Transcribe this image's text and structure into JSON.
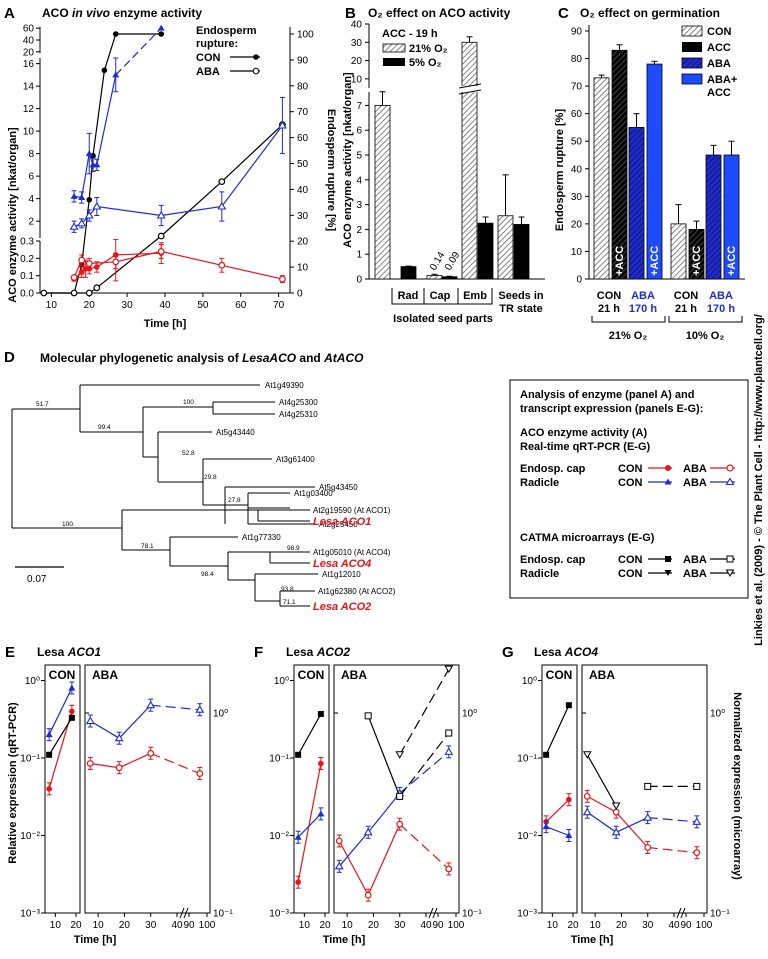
{
  "colors": {
    "con_cap": "#e8151b",
    "radicle": "#1f2bd0",
    "ink": "#000000",
    "aba_bar": "#1f2bd0",
    "aba_acc_bar": "#1f4bff",
    "hatch": "#777777"
  },
  "panel_a": {
    "letter": "A",
    "title_pre": "ACO ",
    "title_em": "in vivo",
    "title_post": " enzyme activity",
    "ylabel": "ACO enzyme activity [nkat/organ]",
    "y2label": "Endosperm rupture [%]",
    "xlabel": "Time [h]",
    "legend": {
      "title1": "Endosperm",
      "title2": "rupture:",
      "con": "CON",
      "aba": "ABA"
    },
    "yticks_low": [
      "0.0",
      "0.1",
      "0.2",
      "0.3"
    ],
    "yticks_mid": [
      "2",
      "4",
      "6",
      "8",
      "10",
      "12",
      "14",
      "16"
    ],
    "yticks_top": [
      "20",
      "40",
      "60"
    ],
    "y2ticks": [
      "0",
      "10",
      "20",
      "30",
      "40",
      "50",
      "60",
      "70",
      "80",
      "90",
      "100"
    ],
    "xticks": [
      "10",
      "20",
      "30",
      "40",
      "50",
      "60",
      "70"
    ]
  },
  "panel_b": {
    "letter": "B",
    "title": "O₂ effect on ACO activity",
    "ylabel": "ACO enzyme activity [nkat/organ]",
    "legend": {
      "head": "ACC - 19 h",
      "s1": "21% O₂",
      "s2": "5% O₂"
    },
    "yticks_low": [
      "0",
      "1",
      "2",
      "3",
      "4",
      "5",
      "6",
      "7"
    ],
    "yticks_top": [
      "10",
      "20",
      "30",
      "40"
    ],
    "labels": {
      "cap_a": "0.14",
      "cap_b": "0.09"
    },
    "groups": [
      "Rad",
      "Cap",
      "Emb"
    ],
    "tr_label1": "Seeds in",
    "tr_label2": "TR state",
    "xgroup": "Isolated seed parts"
  },
  "panel_c": {
    "letter": "C",
    "title": "O₂ effect on germination",
    "ylabel": "Endosperm rupture [%]",
    "legend": [
      "CON",
      "ACC",
      "ABA",
      "ABA+",
      "ACC"
    ],
    "yticks": [
      "0",
      "10",
      "20",
      "30",
      "40",
      "50",
      "60",
      "70",
      "80",
      "90"
    ],
    "bar_text": "+ACC",
    "groups": [
      {
        "a": "CON",
        "b": "21 h",
        "c": "ABA",
        "d": "170 h"
      },
      {
        "a": "CON",
        "b": "21 h",
        "c": "ABA",
        "d": "170 h"
      }
    ],
    "o2_groups": [
      "21% O₂",
      "10% O₂"
    ]
  },
  "side_credit": "Linkies et al. (2009) - © The Plant Cell - http://www.plantcell.org/",
  "panel_d": {
    "letter": "D",
    "title_pre": "Molecular phylogenetic analysis of ",
    "title_em1": "LesaACO",
    "title_mid": " and ",
    "title_em2": "AtACO",
    "leaves": [
      "At1g49390",
      "At4g25300",
      "At4g25310",
      "At5g43440",
      "At3g61400",
      "At5g43450",
      "At1g03400",
      "At2g25450",
      "At2g19590 (At ACO1)",
      "Lesa ACO1",
      "At1g77330",
      "At1g05010 (At ACO4)",
      "Lesa ACO4",
      "At1g12010",
      "At1g62380 (At ACO2)",
      "Lesa ACO2"
    ],
    "bootstrap": [
      "51.7",
      "100",
      "99.4",
      "52.8",
      "29.8",
      "27.8",
      "100.",
      "78.1",
      "98.9",
      "98.4",
      "93.8",
      "71.1"
    ],
    "scale": "0.07",
    "box": {
      "l1": "Analysis of enzyme (panel A) and",
      "l2": "transcript expression (panels E-G):",
      "l3": "ACO enzyme activity (A)",
      "l4": "Real-time qRT-PCR (E-G)",
      "cap": "Endosp. cap",
      "rad": "Radicle",
      "con": "CON",
      "aba": "ABA",
      "l5": "CATMA microarrays (E-G)"
    }
  },
  "panel_efg": {
    "ylabel": "Relative expression (qRT-PCR)",
    "y2label": "Normalized expression (microarray)",
    "xlabel": "Time [h]",
    "con_label": "CON",
    "aba_label": "ABA",
    "yticks": [
      "10⁻³",
      "10⁻²",
      "10⁻¹",
      "10⁰"
    ],
    "y2ticks": [
      "10⁻¹",
      "10⁰"
    ],
    "xticks_con": [
      "10",
      "20"
    ],
    "xticks_aba": [
      "10",
      "20",
      "30",
      "40",
      "90",
      "100"
    ],
    "panels": [
      {
        "letter": "E",
        "gene_pre": "Lesa ",
        "gene": "ACO1"
      },
      {
        "letter": "F",
        "gene_pre": "Lesa ",
        "gene": "ACO2"
      },
      {
        "letter": "G",
        "gene_pre": "Lesa ",
        "gene": "ACO4"
      }
    ]
  },
  "chart_data": [
    {
      "panel": "A",
      "type": "line",
      "title": "ACO in vivo enzyme activity",
      "xlabel": "Time [h]",
      "ylabel": "ACO enzyme activity [nkat/organ]",
      "y2label": "Endosperm rupture [%]",
      "xlim": [
        7,
        73
      ],
      "y_breaks": [
        [
          0,
          0.3
        ],
        [
          0.5,
          16.5
        ],
        [
          18,
          62
        ]
      ],
      "y2lim": [
        0,
        100
      ],
      "series": [
        {
          "name": "CON",
          "axis": "y2",
          "marker": "filled-circle",
          "points": [
            [
              8,
              0
            ],
            [
              16,
              0
            ],
            [
              18,
              11
            ],
            [
              20,
              36
            ],
            [
              21,
              53
            ],
            [
              24,
              86
            ],
            [
              27,
              100
            ],
            [
              39,
              100
            ]
          ]
        },
        {
          "name": "ABA",
          "axis": "y2",
          "marker": "open-circle",
          "points": [
            [
              8,
              0
            ],
            [
              16,
              0
            ],
            [
              20,
              0
            ],
            [
              22,
              2
            ],
            [
              39,
              22
            ],
            [
              55,
              43
            ],
            [
              71,
              65
            ]
          ]
        },
        {
          "points_label": "Endosp. cap CON",
          "axis": "y",
          "points": [
            [
              16,
              0.08
            ],
            [
              18,
              0.12
            ],
            [
              19,
              0.14
            ],
            [
              20,
              0.14
            ],
            [
              22,
              0.15
            ],
            [
              27,
              0.22
            ],
            [
              39,
              0.23
            ]
          ],
          "err": [
            0.01,
            0.03,
            0.05,
            0.03,
            0.03,
            0.15,
            0.06
          ]
        },
        {
          "points_label": "Endosp. cap ABA",
          "axis": "y",
          "points": [
            [
              16,
              0.09
            ],
            [
              18,
              0.19
            ],
            [
              20,
              0.17
            ],
            [
              27,
              0.18
            ],
            [
              39,
              0.24
            ],
            [
              55,
              0.16
            ],
            [
              71,
              0.08
            ]
          ],
          "err": [
            0.01,
            0.03,
            0.03,
            0.04,
            0.04,
            0.04,
            0.02
          ]
        },
        {
          "points_label": "Radicle CON",
          "axis": "y",
          "points": [
            [
              16,
              4.2
            ],
            [
              18,
              4.1
            ],
            [
              20,
              8
            ],
            [
              21,
              7
            ],
            [
              22,
              7
            ],
            [
              27,
              15
            ],
            [
              39,
              60
            ]
          ],
          "err": [
            0.5,
            0.5,
            1.8,
            0.6,
            0.5,
            1.5,
            0
          ]
        },
        {
          "points_label": "Radicle ABA",
          "axis": "y",
          "points": [
            [
              16,
              1.5
            ],
            [
              18,
              1.8
            ],
            [
              20,
              2.5
            ],
            [
              22,
              3.3
            ],
            [
              39,
              2.5
            ],
            [
              55,
              3.3
            ],
            [
              71,
              10.5
            ]
          ],
          "err": [
            0.5,
            0.4,
            0.5,
            0.8,
            0.9,
            1.3,
            2.5
          ]
        }
      ]
    },
    {
      "panel": "B",
      "type": "bar",
      "title": "O₂ effect on ACO activity",
      "ylabel": "ACO enzyme activity [nkat/organ]",
      "categories": [
        "Rad",
        "Cap",
        "Emb",
        "Seeds in TR state"
      ],
      "series": [
        {
          "name": "21% O₂",
          "values": [
            7.0,
            0.14,
            30,
            2.55
          ],
          "err": [
            0.55,
            0.05,
            3,
            1.65
          ]
        },
        {
          "name": "5% O₂",
          "values": [
            0.5,
            0.09,
            2.25,
            2.2
          ],
          "err": [
            0.02,
            0.02,
            0.25,
            0.3
          ]
        }
      ]
    },
    {
      "panel": "C",
      "type": "bar",
      "title": "O₂ effect on germination",
      "ylabel": "Endosperm rupture [%]",
      "ylim": [
        0,
        90
      ],
      "categories": [
        "CON 21 h 21% O₂",
        "ABA 170 h 21% O₂",
        "CON 21 h 10% O₂",
        "ABA 170 h 10% O₂"
      ],
      "series": [
        {
          "name": "CON",
          "values": [
            73,
            null,
            20,
            null
          ],
          "err": [
            1,
            null,
            7,
            null
          ]
        },
        {
          "name": "ACC",
          "values": [
            83,
            null,
            18,
            null
          ],
          "err": [
            2,
            null,
            3,
            null
          ]
        },
        {
          "name": "ABA",
          "values": [
            null,
            55,
            null,
            45
          ],
          "err": [
            null,
            5,
            null,
            3.5
          ]
        },
        {
          "name": "ABA+ ACC",
          "values": [
            null,
            78,
            null,
            45
          ],
          "err": [
            null,
            1,
            null,
            5
          ]
        }
      ]
    },
    {
      "panel": "E",
      "type": "line",
      "title": "Lesa ACO1",
      "yscale": "log",
      "ylim": [
        0.001,
        1.5
      ],
      "series": [
        {
          "points_label": "Endosp. cap CON",
          "x": [
            7,
            18
          ],
          "y": [
            0.04,
            0.4
          ]
        },
        {
          "points_label": "Radicle CON",
          "x": [
            7,
            18
          ],
          "y": [
            0.2,
            0.8
          ]
        },
        {
          "points_label": "Endosp. cap CON microarray",
          "x": [
            7,
            18
          ],
          "y": [
            0.11,
            0.33
          ]
        },
        {
          "points_label": "Endosp. cap ABA",
          "x": [
            7,
            18,
            30,
            96
          ],
          "y": [
            0.085,
            0.075,
            0.115,
            0.063
          ]
        },
        {
          "points_label": "Radicle ABA",
          "x": [
            7,
            18,
            30,
            96
          ],
          "y": [
            0.3,
            0.18,
            0.48,
            0.42
          ]
        }
      ]
    },
    {
      "panel": "F",
      "type": "line",
      "title": "Lesa ACO2",
      "yscale": "log",
      "ylim": [
        0.001,
        1.5
      ],
      "series": [
        {
          "points_label": "Endosp. cap CON",
          "x": [
            7,
            18
          ],
          "y": [
            0.0025,
            0.085
          ]
        },
        {
          "points_label": "Radicle CON",
          "x": [
            7,
            18
          ],
          "y": [
            0.0095,
            0.019
          ]
        },
        {
          "points_label": "Endosp. cap CON microarray",
          "x": [
            7,
            18
          ],
          "y": [
            0.11,
            0.37
          ]
        },
        {
          "points_label": "Endosp. cap ABA",
          "x": [
            7,
            18,
            30,
            96
          ],
          "y": [
            0.0085,
            0.0017,
            0.014,
            0.0037
          ]
        },
        {
          "points_label": "Radicle ABA",
          "x": [
            7,
            18,
            30,
            96
          ],
          "y": [
            0.004,
            0.011,
            0.035,
            0.12
          ]
        },
        {
          "points_label": "Endosp. cap ABA microarray",
          "x": [
            18,
            30,
            96
          ],
          "y": [
            0.35,
            0.032,
            0.21
          ]
        },
        {
          "points_label": "Radicle ABA microarray",
          "x": [
            30,
            96
          ],
          "y": [
            0.11,
            1.4
          ]
        }
      ]
    },
    {
      "panel": "G",
      "type": "line",
      "title": "Lesa ACO4",
      "yscale": "log",
      "ylim": [
        0.001,
        1.5
      ],
      "series": [
        {
          "points_label": "Endosp. cap CON",
          "x": [
            7,
            18
          ],
          "y": [
            0.015,
            0.029
          ]
        },
        {
          "points_label": "Radicle CON",
          "x": [
            7,
            18
          ],
          "y": [
            0.013,
            0.01
          ]
        },
        {
          "points_label": "Endosp. cap CON microarray",
          "x": [
            7,
            18
          ],
          "y": [
            0.11,
            0.48
          ]
        },
        {
          "points_label": "Endosp. cap ABA",
          "x": [
            7,
            18,
            30,
            96
          ],
          "y": [
            0.032,
            0.02,
            0.007,
            0.006
          ]
        },
        {
          "points_label": "Radicle ABA",
          "x": [
            7,
            18,
            30,
            96
          ],
          "y": [
            0.02,
            0.011,
            0.017,
            0.015
          ]
        },
        {
          "points_label": "Radicle ABA microarray",
          "x": [
            7,
            18
          ],
          "y": [
            0.11,
            0.024
          ]
        },
        {
          "points_label": "Endosp. cap ABA microarray",
          "x": [
            30,
            96
          ],
          "y": [
            0.043,
            0.043
          ]
        }
      ]
    }
  ]
}
